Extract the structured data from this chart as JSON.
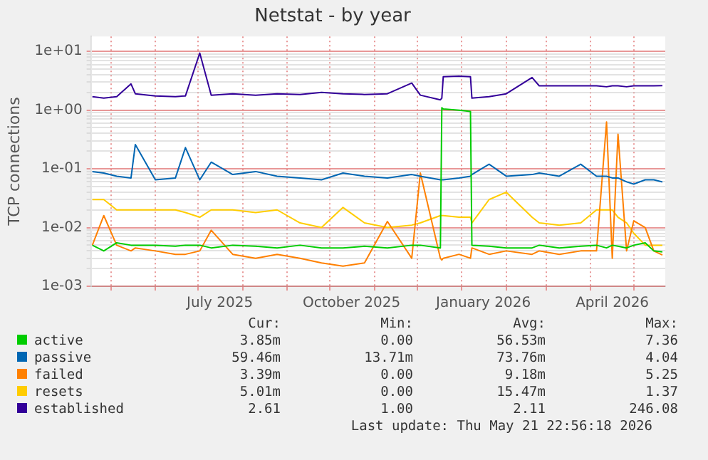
{
  "chart_data": {
    "type": "line",
    "title": "Netstat - by year",
    "ylabel": "TCP connections",
    "log": "y",
    "grid": true,
    "legend": "bottom",
    "xlim": [
      "2025-04-17",
      "2026-05-23"
    ],
    "xticks": [
      {
        "value": "2025-05-01",
        "label": null
      },
      {
        "value": "2025-06-01",
        "label": null
      },
      {
        "value": "2025-07-01",
        "label": null
      },
      {
        "value": "2025-07-16",
        "label": "July 2025"
      },
      {
        "value": "2025-08-01",
        "label": null
      },
      {
        "value": "2025-09-01",
        "label": null
      },
      {
        "value": "2025-10-01",
        "label": null
      },
      {
        "value": "2025-10-16",
        "label": "October 2025"
      },
      {
        "value": "2025-11-01",
        "label": null
      },
      {
        "value": "2025-12-01",
        "label": null
      },
      {
        "value": "2026-01-01",
        "label": null
      },
      {
        "value": "2026-01-16",
        "label": "January 2026"
      },
      {
        "value": "2026-02-01",
        "label": null
      },
      {
        "value": "2026-03-01",
        "label": null
      },
      {
        "value": "2026-04-01",
        "label": null
      },
      {
        "value": "2026-04-16",
        "label": "April 2026"
      },
      {
        "value": "2026-05-01",
        "label": null
      }
    ],
    "ylim": [
      0.001,
      18
    ],
    "yticks": [
      {
        "value": 0.001,
        "label": "1e-03"
      },
      {
        "value": 0.002,
        "label": null
      },
      {
        "value": 0.003,
        "label": null
      },
      {
        "value": 0.004,
        "label": null
      },
      {
        "value": 0.005,
        "label": null
      },
      {
        "value": 0.006,
        "label": null
      },
      {
        "value": 0.007,
        "label": null
      },
      {
        "value": 0.008,
        "label": null
      },
      {
        "value": 0.009,
        "label": null
      },
      {
        "value": 0.01,
        "label": "1e-02"
      },
      {
        "value": 0.02,
        "label": null
      },
      {
        "value": 0.03,
        "label": null
      },
      {
        "value": 0.04,
        "label": null
      },
      {
        "value": 0.05,
        "label": null
      },
      {
        "value": 0.06,
        "label": null
      },
      {
        "value": 0.07,
        "label": null
      },
      {
        "value": 0.08,
        "label": null
      },
      {
        "value": 0.09,
        "label": null
      },
      {
        "value": 0.1,
        "label": "1e-01"
      },
      {
        "value": 0.2,
        "label": null
      },
      {
        "value": 0.3,
        "label": null
      },
      {
        "value": 0.4,
        "label": null
      },
      {
        "value": 0.5,
        "label": null
      },
      {
        "value": 0.6,
        "label": null
      },
      {
        "value": 0.7,
        "label": null
      },
      {
        "value": 0.8,
        "label": null
      },
      {
        "value": 0.9,
        "label": null
      },
      {
        "value": 1,
        "label": "1e+00"
      },
      {
        "value": 2,
        "label": null
      },
      {
        "value": 3,
        "label": null
      },
      {
        "value": 4,
        "label": null
      },
      {
        "value": 5,
        "label": null
      },
      {
        "value": 6,
        "label": null
      },
      {
        "value": 7,
        "label": null
      },
      {
        "value": 8,
        "label": null
      },
      {
        "value": 9,
        "label": null
      },
      {
        "value": 10,
        "label": "1e+01"
      }
    ],
    "x": [
      "2025-04-18",
      "2025-04-26",
      "2025-05-05",
      "2025-05-15",
      "2025-05-18",
      "2025-06-01",
      "2025-06-15",
      "2025-06-22",
      "2025-07-02",
      "2025-07-10",
      "2025-07-25",
      "2025-08-10",
      "2025-08-25",
      "2025-09-10",
      "2025-09-25",
      "2025-10-10",
      "2025-10-25",
      "2025-11-10",
      "2025-11-27",
      "2025-12-03",
      "2025-12-17",
      "2025-12-18",
      "2025-12-19",
      "2025-12-30",
      "2026-01-07",
      "2026-01-08",
      "2026-01-20",
      "2026-02-01",
      "2026-02-19",
      "2026-02-24",
      "2026-03-10",
      "2026-03-25",
      "2026-04-05",
      "2026-04-12",
      "2026-04-16",
      "2026-04-20",
      "2026-04-26",
      "2026-05-01",
      "2026-05-09",
      "2026-05-15",
      "2026-05-21"
    ],
    "series": [
      {
        "name": "active",
        "color": "#00cc00",
        "values": [
          0.005,
          0.004,
          0.0055,
          0.005,
          0.005,
          0.005,
          0.0048,
          0.005,
          0.005,
          0.0045,
          0.005,
          0.0048,
          0.0045,
          0.005,
          0.0045,
          0.0045,
          0.0048,
          0.0045,
          0.005,
          0.005,
          0.0045,
          1.1,
          1.05,
          1.0,
          0.95,
          0.005,
          0.0048,
          0.0045,
          0.0045,
          0.005,
          0.0045,
          0.0048,
          0.005,
          0.0045,
          0.005,
          0.0048,
          0.0045,
          0.005,
          0.0055,
          0.004,
          0.00385
        ]
      },
      {
        "name": "passive",
        "color": "#0066b3",
        "values": [
          0.09,
          0.085,
          0.075,
          0.07,
          0.26,
          0.065,
          0.07,
          0.23,
          0.065,
          0.13,
          0.08,
          0.09,
          0.075,
          0.07,
          0.065,
          0.085,
          0.075,
          0.07,
          0.08,
          0.075,
          0.065,
          0.065,
          0.065,
          0.07,
          0.075,
          0.08,
          0.12,
          0.075,
          0.08,
          0.085,
          0.075,
          0.12,
          0.075,
          0.075,
          0.07,
          0.07,
          0.06,
          0.055,
          0.065,
          0.065,
          0.06
        ]
      },
      {
        "name": "failed",
        "color": "#ff8000",
        "values": [
          0.005,
          0.016,
          0.005,
          0.004,
          0.0045,
          0.004,
          0.0035,
          0.0035,
          0.004,
          0.009,
          0.0035,
          0.003,
          0.0035,
          0.003,
          0.0025,
          0.0022,
          0.0025,
          0.0127,
          0.003,
          0.085,
          0.003,
          0.0028,
          0.003,
          0.0035,
          0.003,
          0.0045,
          0.0035,
          0.004,
          0.0035,
          0.004,
          0.0035,
          0.004,
          0.004,
          0.63,
          0.003,
          0.39,
          0.004,
          0.013,
          0.01,
          0.004,
          0.0034
        ]
      },
      {
        "name": "resets",
        "color": "#ffcc00",
        "values": [
          0.03,
          0.03,
          0.02,
          0.02,
          0.02,
          0.02,
          0.02,
          0.018,
          0.015,
          0.02,
          0.02,
          0.018,
          0.02,
          0.012,
          0.01,
          0.022,
          0.012,
          0.01,
          0.011,
          0.012,
          0.016,
          0.016,
          0.016,
          0.015,
          0.015,
          0.012,
          0.03,
          0.04,
          0.015,
          0.012,
          0.011,
          0.012,
          0.02,
          0.02,
          0.02,
          0.015,
          0.012,
          0.008,
          0.005,
          0.005,
          0.005
        ]
      },
      {
        "name": "established",
        "color": "#330099",
        "values": [
          1.7,
          1.6,
          1.7,
          2.8,
          1.9,
          1.75,
          1.7,
          1.75,
          9.4,
          1.8,
          1.9,
          1.8,
          1.9,
          1.85,
          2.0,
          1.9,
          1.85,
          1.9,
          2.9,
          1.8,
          1.5,
          1.6,
          3.7,
          3.8,
          3.7,
          1.6,
          1.7,
          1.9,
          3.6,
          2.6,
          2.6,
          2.6,
          2.6,
          2.5,
          2.6,
          2.6,
          2.5,
          2.6,
          2.6,
          2.6,
          2.61
        ]
      }
    ],
    "annotations": [
      "Cur:",
      "Min:",
      "Avg:",
      "Max:",
      "3.85m",
      "0.00",
      "56.53m",
      "7.36",
      "59.46m",
      "13.71m",
      "73.76m",
      "4.04",
      "3.39m",
      "0.00",
      "9.18m",
      "5.25",
      "5.01m",
      "0.00",
      "15.47m",
      "1.37",
      "2.61",
      "1.00",
      "2.11",
      "246.08",
      "Last update: Thu May 21 22:56:18 2026"
    ]
  }
}
